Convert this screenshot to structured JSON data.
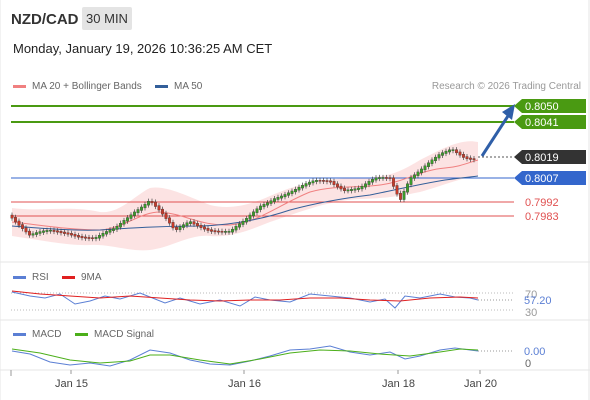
{
  "header": {
    "symbol": "NZD/CAD",
    "timeframe": "30 MIN",
    "datetime": "Monday, January 19, 2026 10:36:25 AM CET"
  },
  "legend_main": [
    {
      "label": "MA 20 + Bollinger Bands",
      "color": "#f08080"
    },
    {
      "label": "MA 50",
      "color": "#335f9a"
    }
  ],
  "credit": "Research © 2026 Trading Central",
  "price_levels": [
    {
      "value": "0.8050",
      "kind": "target"
    },
    {
      "value": "0.8041",
      "kind": "target"
    },
    {
      "value": "0.8019",
      "kind": "last"
    },
    {
      "value": "0.8007",
      "kind": "pivot"
    },
    {
      "value": "0.7992",
      "kind": "support"
    },
    {
      "value": "0.7983",
      "kind": "support"
    }
  ],
  "rsi_panel": {
    "legend": [
      {
        "label": "RSI",
        "color": "#5b7fd4"
      },
      {
        "label": "9MA",
        "color": "#e02020"
      }
    ],
    "levels": [
      "70",
      "30"
    ],
    "value": "57.20"
  },
  "macd_panel": {
    "legend": [
      {
        "label": "MACD",
        "color": "#5b7fd4"
      },
      {
        "label": "MACD Signal",
        "color": "#4caf1a"
      }
    ],
    "value": "0.00",
    "zero": "0"
  },
  "x_axis": [
    "Jan 15",
    "Jan 16",
    "Jan 18",
    "Jan 20"
  ],
  "colors": {
    "target": "#4a9a12",
    "last": "#333333",
    "pivot": "#3366cc",
    "support": "#e05050",
    "arrow": "#2f5fa8"
  }
}
